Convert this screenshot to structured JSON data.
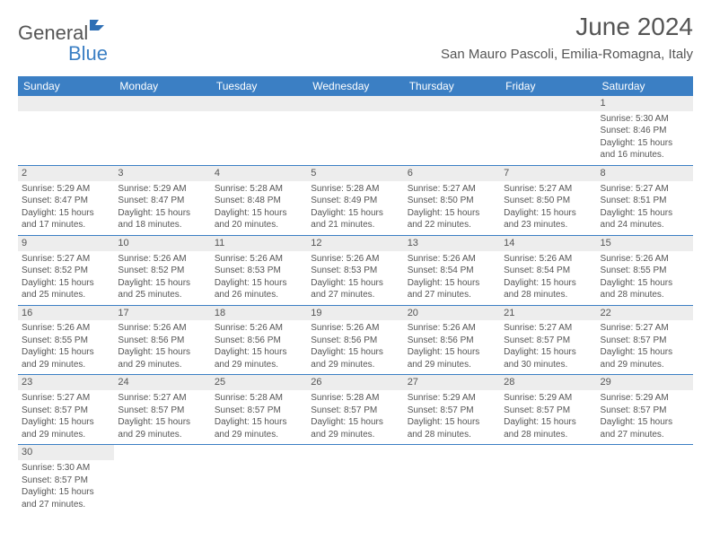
{
  "brand": {
    "general": "General",
    "blue": "Blue"
  },
  "title": "June 2024",
  "location": "San Mauro Pascoli, Emilia-Romagna, Italy",
  "colors": {
    "header_bg": "#3b7fc4",
    "text": "#555555",
    "shade": "#ededed",
    "rule": "#3b7fc4"
  },
  "weekdays": [
    "Sunday",
    "Monday",
    "Tuesday",
    "Wednesday",
    "Thursday",
    "Friday",
    "Saturday"
  ],
  "weeks": [
    [
      null,
      null,
      null,
      null,
      null,
      null,
      {
        "n": "1",
        "sr": "5:30 AM",
        "ss": "8:46 PM",
        "dl": "15 hours and 16 minutes."
      }
    ],
    [
      {
        "n": "2",
        "sr": "5:29 AM",
        "ss": "8:47 PM",
        "dl": "15 hours and 17 minutes."
      },
      {
        "n": "3",
        "sr": "5:29 AM",
        "ss": "8:47 PM",
        "dl": "15 hours and 18 minutes."
      },
      {
        "n": "4",
        "sr": "5:28 AM",
        "ss": "8:48 PM",
        "dl": "15 hours and 20 minutes."
      },
      {
        "n": "5",
        "sr": "5:28 AM",
        "ss": "8:49 PM",
        "dl": "15 hours and 21 minutes."
      },
      {
        "n": "6",
        "sr": "5:27 AM",
        "ss": "8:50 PM",
        "dl": "15 hours and 22 minutes."
      },
      {
        "n": "7",
        "sr": "5:27 AM",
        "ss": "8:50 PM",
        "dl": "15 hours and 23 minutes."
      },
      {
        "n": "8",
        "sr": "5:27 AM",
        "ss": "8:51 PM",
        "dl": "15 hours and 24 minutes."
      }
    ],
    [
      {
        "n": "9",
        "sr": "5:27 AM",
        "ss": "8:52 PM",
        "dl": "15 hours and 25 minutes."
      },
      {
        "n": "10",
        "sr": "5:26 AM",
        "ss": "8:52 PM",
        "dl": "15 hours and 25 minutes."
      },
      {
        "n": "11",
        "sr": "5:26 AM",
        "ss": "8:53 PM",
        "dl": "15 hours and 26 minutes."
      },
      {
        "n": "12",
        "sr": "5:26 AM",
        "ss": "8:53 PM",
        "dl": "15 hours and 27 minutes."
      },
      {
        "n": "13",
        "sr": "5:26 AM",
        "ss": "8:54 PM",
        "dl": "15 hours and 27 minutes."
      },
      {
        "n": "14",
        "sr": "5:26 AM",
        "ss": "8:54 PM",
        "dl": "15 hours and 28 minutes."
      },
      {
        "n": "15",
        "sr": "5:26 AM",
        "ss": "8:55 PM",
        "dl": "15 hours and 28 minutes."
      }
    ],
    [
      {
        "n": "16",
        "sr": "5:26 AM",
        "ss": "8:55 PM",
        "dl": "15 hours and 29 minutes."
      },
      {
        "n": "17",
        "sr": "5:26 AM",
        "ss": "8:56 PM",
        "dl": "15 hours and 29 minutes."
      },
      {
        "n": "18",
        "sr": "5:26 AM",
        "ss": "8:56 PM",
        "dl": "15 hours and 29 minutes."
      },
      {
        "n": "19",
        "sr": "5:26 AM",
        "ss": "8:56 PM",
        "dl": "15 hours and 29 minutes."
      },
      {
        "n": "20",
        "sr": "5:26 AM",
        "ss": "8:56 PM",
        "dl": "15 hours and 29 minutes."
      },
      {
        "n": "21",
        "sr": "5:27 AM",
        "ss": "8:57 PM",
        "dl": "15 hours and 30 minutes."
      },
      {
        "n": "22",
        "sr": "5:27 AM",
        "ss": "8:57 PM",
        "dl": "15 hours and 29 minutes."
      }
    ],
    [
      {
        "n": "23",
        "sr": "5:27 AM",
        "ss": "8:57 PM",
        "dl": "15 hours and 29 minutes."
      },
      {
        "n": "24",
        "sr": "5:27 AM",
        "ss": "8:57 PM",
        "dl": "15 hours and 29 minutes."
      },
      {
        "n": "25",
        "sr": "5:28 AM",
        "ss": "8:57 PM",
        "dl": "15 hours and 29 minutes."
      },
      {
        "n": "26",
        "sr": "5:28 AM",
        "ss": "8:57 PM",
        "dl": "15 hours and 29 minutes."
      },
      {
        "n": "27",
        "sr": "5:29 AM",
        "ss": "8:57 PM",
        "dl": "15 hours and 28 minutes."
      },
      {
        "n": "28",
        "sr": "5:29 AM",
        "ss": "8:57 PM",
        "dl": "15 hours and 28 minutes."
      },
      {
        "n": "29",
        "sr": "5:29 AM",
        "ss": "8:57 PM",
        "dl": "15 hours and 27 minutes."
      }
    ],
    [
      {
        "n": "30",
        "sr": "5:30 AM",
        "ss": "8:57 PM",
        "dl": "15 hours and 27 minutes."
      },
      null,
      null,
      null,
      null,
      null,
      null
    ]
  ],
  "labels": {
    "sunrise": "Sunrise: ",
    "sunset": "Sunset: ",
    "daylight": "Daylight: "
  }
}
